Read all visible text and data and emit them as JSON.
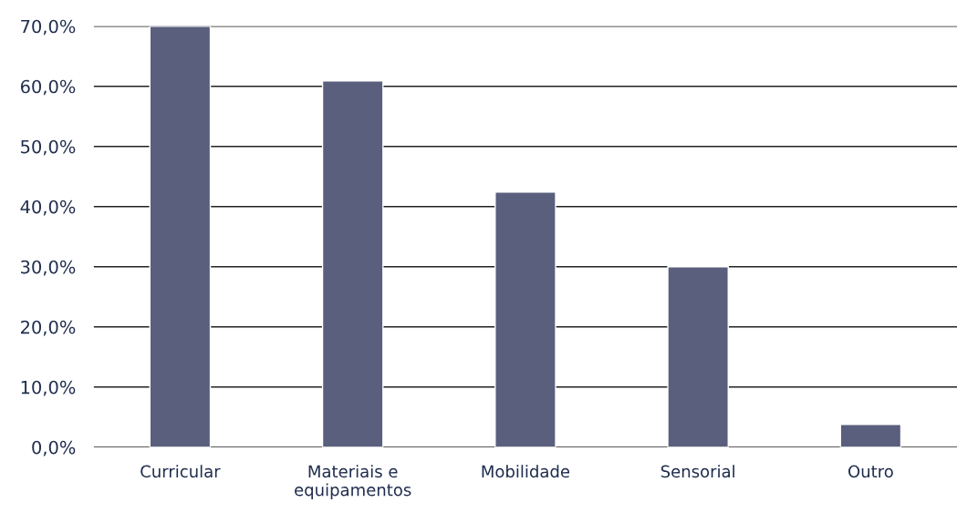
{
  "chart_data": {
    "type": "bar",
    "categories": [
      "Curricular",
      "Materiais e\nequipamentos",
      "Mobilidade",
      "Sensorial",
      "Outro"
    ],
    "values": [
      70.0,
      60.9,
      42.4,
      30.0,
      3.8
    ],
    "color": "#5b5f7e",
    "ylim": [
      0,
      70
    ],
    "yticks": [
      {
        "value": 0,
        "label": "0,0%"
      },
      {
        "value": 10,
        "label": "10,0%"
      },
      {
        "value": 20,
        "label": "20,0%"
      },
      {
        "value": 30,
        "label": "30,0%"
      },
      {
        "value": 40,
        "label": "40,0%"
      },
      {
        "value": 50,
        "label": "50,0%"
      },
      {
        "value": 60,
        "label": "60,0%"
      },
      {
        "value": 70,
        "label": "70,0%"
      }
    ],
    "grid": "y",
    "legend": false
  }
}
